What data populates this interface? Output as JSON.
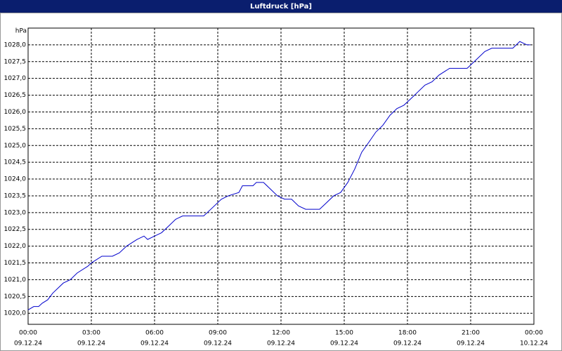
{
  "chart_data": {
    "type": "line",
    "title": "Luftdruck [hPa]",
    "ylabel": "hPa",
    "grid": true,
    "color": "#0000cc",
    "x": [
      0,
      0.27,
      0.5,
      0.67,
      0.93,
      1.17,
      1.67,
      2,
      2.33,
      2.83,
      3,
      3.5,
      4,
      4.33,
      4.67,
      5.17,
      5.5,
      5.67,
      6,
      6.33,
      6.67,
      7,
      7.33,
      8.33,
      8.67,
      9.17,
      9.5,
      10,
      10.17,
      10.67,
      10.83,
      11.17,
      11.5,
      11.83,
      12.17,
      12.5,
      12.83,
      13.17,
      13.83,
      14.17,
      14.5,
      14.83,
      15.17,
      15.5,
      15.83,
      16.17,
      16.5,
      16.83,
      17.17,
      17.5,
      17.83,
      18.17,
      18.5,
      18.83,
      19.17,
      19.5,
      20,
      20.83,
      21.17,
      21.67,
      22,
      23,
      23.33,
      23.67,
      23.83
    ],
    "values": [
      1020.1,
      1020.2,
      1020.2,
      1020.3,
      1020.4,
      1020.6,
      1020.9,
      1021.0,
      1021.2,
      1021.4,
      1021.5,
      1021.7,
      1021.7,
      1021.8,
      1022.0,
      1022.2,
      1022.3,
      1022.2,
      1022.3,
      1022.4,
      1022.6,
      1022.8,
      1022.9,
      1022.9,
      1023.1,
      1023.4,
      1023.5,
      1023.6,
      1023.8,
      1023.8,
      1023.9,
      1023.9,
      1023.7,
      1023.5,
      1023.4,
      1023.4,
      1023.2,
      1023.1,
      1023.1,
      1023.3,
      1023.5,
      1023.6,
      1023.9,
      1024.3,
      1024.8,
      1025.1,
      1025.4,
      1025.6,
      1025.9,
      1026.1,
      1026.2,
      1026.4,
      1026.6,
      1026.8,
      1026.9,
      1027.1,
      1027.3,
      1027.3,
      1027.5,
      1027.8,
      1027.9,
      1027.9,
      1028.1,
      1028.0,
      1028.0
    ],
    "xlim": [
      0,
      24
    ],
    "xticks": [
      {
        "value": 0,
        "label": "00:00",
        "date": "09.12.24"
      },
      {
        "value": 3,
        "label": "03:00",
        "date": "09.12.24"
      },
      {
        "value": 6,
        "label": "06:00",
        "date": "09.12.24"
      },
      {
        "value": 9,
        "label": "09:00",
        "date": "09.12.24"
      },
      {
        "value": 12,
        "label": "12:00",
        "date": "09.12.24"
      },
      {
        "value": 15,
        "label": "15:00",
        "date": "09.12.24"
      },
      {
        "value": 18,
        "label": "18:00",
        "date": "09.12.24"
      },
      {
        "value": 21,
        "label": "21:00",
        "date": "09.12.24"
      },
      {
        "value": 24,
        "label": "00:00",
        "date": "10.12.24"
      }
    ],
    "ylim": [
      1019.67,
      1028.5
    ],
    "yticks": [
      {
        "value": 1020.0,
        "label": "1020,0"
      },
      {
        "value": 1020.5,
        "label": "1020,5"
      },
      {
        "value": 1021.0,
        "label": "1021,0"
      },
      {
        "value": 1021.5,
        "label": "1021,5"
      },
      {
        "value": 1022.0,
        "label": "1022,0"
      },
      {
        "value": 1022.5,
        "label": "1022,5"
      },
      {
        "value": 1023.0,
        "label": "1023,0"
      },
      {
        "value": 1023.5,
        "label": "1023,5"
      },
      {
        "value": 1024.0,
        "label": "1024,0"
      },
      {
        "value": 1024.5,
        "label": "1024,5"
      },
      {
        "value": 1025.0,
        "label": "1025,0"
      },
      {
        "value": 1025.5,
        "label": "1025,5"
      },
      {
        "value": 1026.0,
        "label": "1026,0"
      },
      {
        "value": 1026.5,
        "label": "1026,5"
      },
      {
        "value": 1027.0,
        "label": "1027,0"
      },
      {
        "value": 1027.5,
        "label": "1027,5"
      },
      {
        "value": 1028.0,
        "label": "1028,0"
      }
    ]
  }
}
